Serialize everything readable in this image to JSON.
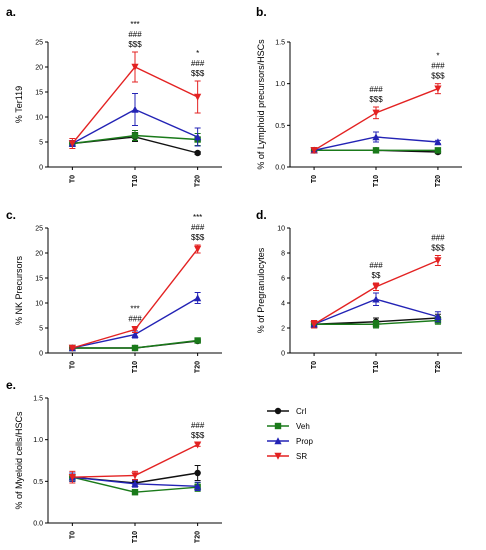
{
  "series_styles": [
    {
      "name": "Crl",
      "color": "#111111",
      "marker": "circle"
    },
    {
      "name": "Veh",
      "color": "#1a7a1a",
      "marker": "square"
    },
    {
      "name": "Prop",
      "color": "#2323b5",
      "marker": "triangle-up"
    },
    {
      "name": "SR",
      "color": "#e32222",
      "marker": "triangle-down"
    }
  ],
  "legend": {
    "placement": "right of panel e",
    "entries": [
      "Crl",
      "Veh",
      "Prop",
      "SR"
    ]
  },
  "chart_data": [
    {
      "id": "a",
      "letter": "a.",
      "type": "line",
      "ylabel": "% Ter119",
      "categories": [
        "T0",
        "T10",
        "T20"
      ],
      "ylim": [
        0,
        25
      ],
      "yticks": [
        0,
        5,
        10,
        15,
        20,
        25
      ],
      "series": [
        {
          "name": "Crl",
          "values": [
            4.7,
            6.0,
            2.8
          ],
          "errors": [
            0.5,
            0.9,
            0.3
          ]
        },
        {
          "name": "Veh",
          "values": [
            4.7,
            6.3,
            5.5
          ],
          "errors": [
            0.4,
            1.0,
            1.2
          ]
        },
        {
          "name": "Prop",
          "values": [
            4.7,
            11.5,
            6.0
          ],
          "errors": [
            0.6,
            3.2,
            1.8
          ]
        },
        {
          "name": "SR",
          "values": [
            4.7,
            20.0,
            14.0
          ],
          "errors": [
            1.0,
            3.0,
            3.2
          ]
        }
      ],
      "annotations": [
        {
          "x": "T10",
          "lines": [
            "***",
            "###",
            "$$$"
          ]
        },
        {
          "x": "T20",
          "lines": [
            "*",
            "###",
            "$$$"
          ]
        }
      ]
    },
    {
      "id": "b",
      "letter": "b.",
      "type": "line",
      "ylabel": "% of Lymphoid precursors/HSCs",
      "categories": [
        "T0",
        "T10",
        "T20"
      ],
      "ylim": [
        0,
        1.5
      ],
      "yticks": [
        0.0,
        0.5,
        1.0,
        1.5
      ],
      "ytick_labels": [
        "0.0",
        "0.5",
        "1.0",
        "1.5"
      ],
      "series": [
        {
          "name": "Crl",
          "values": [
            0.2,
            0.2,
            0.18
          ],
          "errors": [
            0.02,
            0.02,
            0.02
          ]
        },
        {
          "name": "Veh",
          "values": [
            0.2,
            0.2,
            0.2
          ],
          "errors": [
            0.02,
            0.02,
            0.02
          ]
        },
        {
          "name": "Prop",
          "values": [
            0.2,
            0.36,
            0.3
          ],
          "errors": [
            0.02,
            0.06,
            0.02
          ]
        },
        {
          "name": "SR",
          "values": [
            0.2,
            0.65,
            0.94
          ],
          "errors": [
            0.03,
            0.07,
            0.06
          ]
        }
      ],
      "annotations": [
        {
          "x": "T10",
          "lines": [
            "###",
            "$$$"
          ]
        },
        {
          "x": "T20",
          "lines": [
            "*",
            "###",
            "$$$"
          ]
        }
      ]
    },
    {
      "id": "c",
      "letter": "c.",
      "type": "line",
      "ylabel": "% NK Precursors",
      "categories": [
        "T0",
        "T10",
        "T20"
      ],
      "ylim": [
        0,
        25
      ],
      "yticks": [
        0,
        5,
        10,
        15,
        20,
        25
      ],
      "series": [
        {
          "name": "Crl",
          "values": [
            1.0,
            1.0,
            2.4
          ],
          "errors": [
            0.2,
            0.2,
            0.3
          ]
        },
        {
          "name": "Veh",
          "values": [
            1.0,
            1.0,
            2.5
          ],
          "errors": [
            0.2,
            0.2,
            0.3
          ]
        },
        {
          "name": "Prop",
          "values": [
            1.0,
            3.7,
            11.0
          ],
          "errors": [
            0.2,
            0.7,
            1.1
          ]
        },
        {
          "name": "SR",
          "values": [
            1.0,
            4.7,
            20.8
          ],
          "errors": [
            0.2,
            0.6,
            0.8
          ]
        }
      ],
      "annotations": [
        {
          "x": "T10",
          "lines": [
            "***",
            "###"
          ]
        },
        {
          "x": "T20",
          "lines": [
            "***",
            "###",
            "$$$"
          ]
        }
      ]
    },
    {
      "id": "d",
      "letter": "d.",
      "type": "line",
      "ylabel": "% of Pregranulocytes",
      "categories": [
        "T0",
        "T10",
        "T20"
      ],
      "ylim": [
        0,
        10
      ],
      "yticks": [
        0,
        2,
        4,
        6,
        8,
        10
      ],
      "series": [
        {
          "name": "Crl",
          "values": [
            2.3,
            2.5,
            2.8
          ],
          "errors": [
            0.3,
            0.3,
            0.3
          ]
        },
        {
          "name": "Veh",
          "values": [
            2.3,
            2.3,
            2.6
          ],
          "errors": [
            0.3,
            0.3,
            0.3
          ]
        },
        {
          "name": "Prop",
          "values": [
            2.3,
            4.3,
            2.9
          ],
          "errors": [
            0.3,
            0.5,
            0.4
          ]
        },
        {
          "name": "SR",
          "values": [
            2.3,
            5.3,
            7.4
          ],
          "errors": [
            0.3,
            0.3,
            0.4
          ]
        }
      ],
      "annotations": [
        {
          "x": "T10",
          "lines": [
            "###",
            "$$"
          ]
        },
        {
          "x": "T20",
          "lines": [
            "###",
            "$$$"
          ]
        }
      ]
    },
    {
      "id": "e",
      "letter": "e.",
      "type": "line",
      "ylabel": "% of Myeloid cells/HSCs",
      "categories": [
        "T0",
        "T10",
        "T20"
      ],
      "ylim": [
        0,
        1.5
      ],
      "yticks": [
        0.0,
        0.5,
        1.0,
        1.5
      ],
      "ytick_labels": [
        "0.0",
        "0.5",
        "1.0",
        "1.5"
      ],
      "series": [
        {
          "name": "Crl",
          "values": [
            0.55,
            0.48,
            0.6
          ],
          "errors": [
            0.05,
            0.04,
            0.09
          ]
        },
        {
          "name": "Veh",
          "values": [
            0.55,
            0.37,
            0.43
          ],
          "errors": [
            0.05,
            0.03,
            0.05
          ]
        },
        {
          "name": "Prop",
          "values": [
            0.55,
            0.47,
            0.44
          ],
          "errors": [
            0.05,
            0.04,
            0.05
          ]
        },
        {
          "name": "SR",
          "values": [
            0.55,
            0.57,
            0.94
          ],
          "errors": [
            0.07,
            0.05,
            0.02
          ]
        }
      ],
      "annotations": [
        {
          "x": "T20",
          "lines": [
            "###",
            "$$$"
          ]
        }
      ]
    }
  ]
}
